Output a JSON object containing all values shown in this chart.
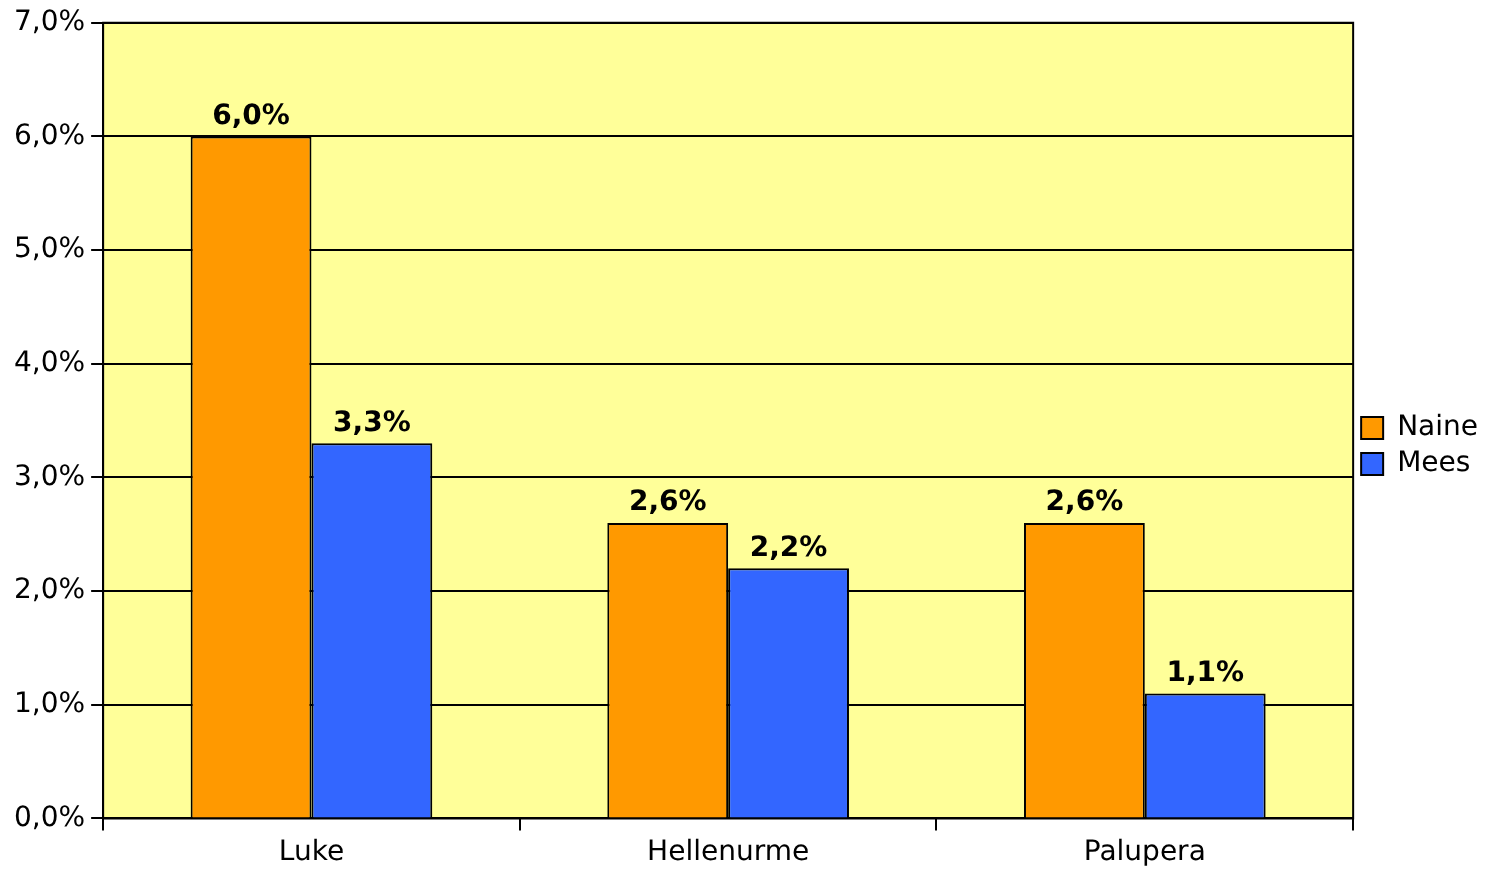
{
  "chart_data": {
    "type": "bar",
    "categories": [
      "Luke",
      "Hellenurme",
      "Palupera"
    ],
    "series": [
      {
        "name": "Naine",
        "color": "#ff9900",
        "values": [
          6.0,
          2.6,
          2.6
        ],
        "value_labels": [
          "6,0%",
          "2,6%",
          "2,6%"
        ]
      },
      {
        "name": "Mees",
        "color": "#3366ff",
        "values": [
          3.3,
          2.2,
          1.1
        ],
        "value_labels": [
          "3,3%",
          "2,2%",
          "1,1%"
        ]
      }
    ],
    "ylim": [
      0,
      7
    ],
    "yticks": [
      {
        "value": 0,
        "label": "0,0%"
      },
      {
        "value": 1,
        "label": "1,0%"
      },
      {
        "value": 2,
        "label": "2,0%"
      },
      {
        "value": 3,
        "label": "3,0%"
      },
      {
        "value": 4,
        "label": "4,0%"
      },
      {
        "value": 5,
        "label": "5,0%"
      },
      {
        "value": 6,
        "label": "6,0%"
      },
      {
        "value": 7,
        "label": "7,0%"
      }
    ],
    "grid": "y",
    "legend": "right"
  }
}
